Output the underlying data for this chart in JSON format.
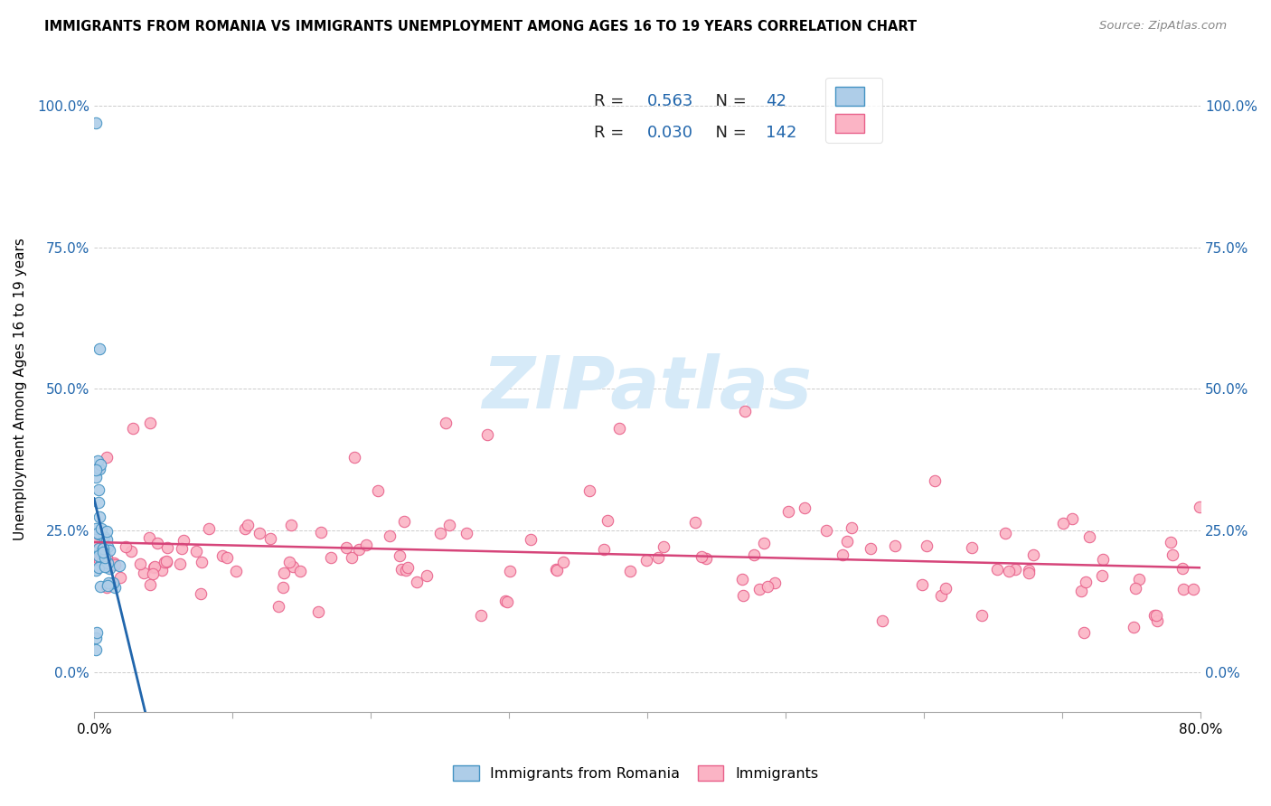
{
  "title": "IMMIGRANTS FROM ROMANIA VS IMMIGRANTS UNEMPLOYMENT AMONG AGES 16 TO 19 YEARS CORRELATION CHART",
  "source": "Source: ZipAtlas.com",
  "ylabel": "Unemployment Among Ages 16 to 19 years",
  "legend_romania_R": "0.563",
  "legend_romania_N": "42",
  "legend_immigrants_R": "0.030",
  "legend_immigrants_N": "142",
  "blue_face_color": "#aecde8",
  "blue_edge_color": "#4393c3",
  "pink_face_color": "#fbb4c5",
  "pink_edge_color": "#e8608a",
  "blue_line_color": "#2166ac",
  "pink_line_color": "#d6457a",
  "watermark_color": "#d6eaf8",
  "xlim": [
    0.0,
    0.8
  ],
  "ylim": [
    -0.07,
    1.07
  ],
  "background_color": "#ffffff",
  "grid_color": "#cccccc"
}
